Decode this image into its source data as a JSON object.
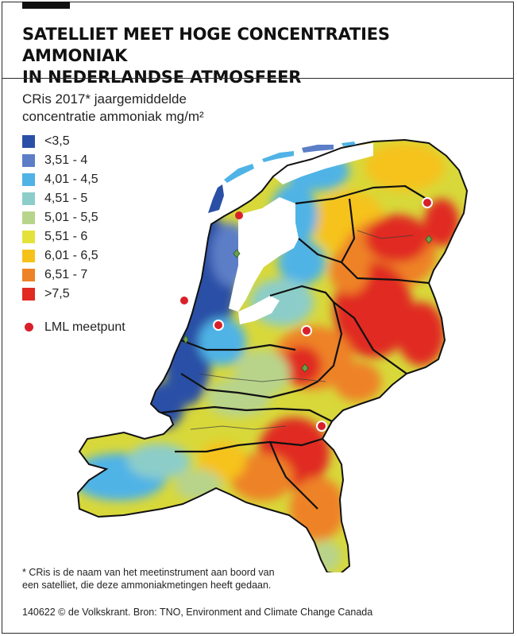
{
  "header": {
    "title_line1": "SATELLIET MEET HOGE CONCENTRATIES AMMONIAK",
    "title_line2": "IN NEDERLANDSE ATMOSFEER"
  },
  "legend": {
    "title_line1": "CRis 2017* jaargemiddelde",
    "title_line2": "concentratie ammoniak mg/m²",
    "classes": [
      {
        "label": "<3,5",
        "color": "#2a4fa6"
      },
      {
        "label": "3,51 - 4",
        "color": "#5b7ec7"
      },
      {
        "label": "4,01 - 4,5",
        "color": "#4fb3e6"
      },
      {
        "label": "4,51 - 5",
        "color": "#8ccdc9"
      },
      {
        "label": "5,01 - 5,5",
        "color": "#b8d48a"
      },
      {
        "label": "5,51 - 6",
        "color": "#e4e23a"
      },
      {
        "label": "6,01 - 6,5",
        "color": "#f6c21a"
      },
      {
        "label": "6,51 - 7",
        "color": "#ee8226"
      },
      {
        "label": ">7,5",
        "color": "#e02a22"
      }
    ],
    "station_label": "LML meetpunt",
    "station_color": "#d9202a"
  },
  "footnote": {
    "line1": "* CRis is de naam van het meetinstrument aan boord van",
    "line2": "een satelliet, die deze ammoniakmetingen heeft gedaan."
  },
  "credit": "140622 © de Volkskrant. Bron: TNO, Environment and Climate Change Canada"
}
